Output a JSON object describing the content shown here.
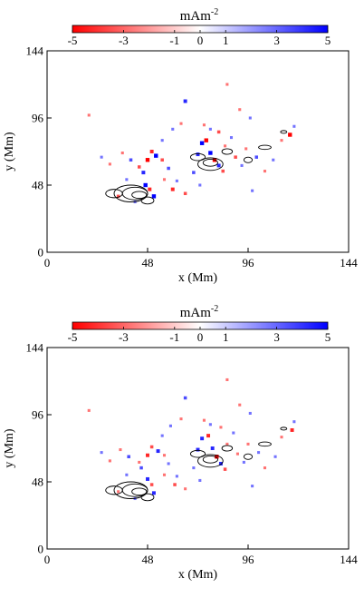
{
  "chart_data": [
    {
      "type": "heatmap",
      "colorbar": {
        "unit_base": "mAm",
        "unit_exp": "-2",
        "ticks": [
          "-5",
          "-3",
          "-1",
          "0",
          "1",
          "3",
          "5"
        ],
        "range": [
          -5,
          5
        ],
        "colors": {
          "negative": "#ff0000",
          "zero": "#ffffff",
          "positive": "#0000ff"
        }
      },
      "xlabel": "x (Mm)",
      "ylabel": "y (Mm)",
      "xticks": [
        "0",
        "48",
        "96",
        "144"
      ],
      "yticks": [
        "0",
        "48",
        "96",
        "144"
      ],
      "xlim": [
        0,
        144
      ],
      "ylim": [
        0,
        144
      ],
      "contour_color": "#000000",
      "contours": [
        {
          "cx": 40,
          "cy": 42,
          "rx": 8,
          "ry": 6
        },
        {
          "cx": 42,
          "cy": 42,
          "rx": 6,
          "ry": 4.5
        },
        {
          "cx": 44,
          "cy": 41,
          "rx": 3.5,
          "ry": 2.5
        },
        {
          "cx": 32,
          "cy": 42,
          "rx": 4,
          "ry": 3
        },
        {
          "cx": 48,
          "cy": 37,
          "rx": 3,
          "ry": 2.5
        },
        {
          "cx": 78,
          "cy": 63,
          "rx": 6,
          "ry": 4.5
        },
        {
          "cx": 78,
          "cy": 64,
          "rx": 3.5,
          "ry": 2.5
        },
        {
          "cx": 72,
          "cy": 68,
          "rx": 3.5,
          "ry": 2.5
        },
        {
          "cx": 86,
          "cy": 72,
          "rx": 2.5,
          "ry": 2
        },
        {
          "cx": 96,
          "cy": 66,
          "rx": 2,
          "ry": 2
        },
        {
          "cx": 104,
          "cy": 75,
          "rx": 3,
          "ry": 1.5
        },
        {
          "cx": 113,
          "cy": 86,
          "rx": 1.5,
          "ry": 1
        }
      ],
      "patches": [
        {
          "x": 47,
          "y": 48,
          "v": 5
        },
        {
          "x": 49,
          "y": 45,
          "v": -4
        },
        {
          "x": 51,
          "y": 40,
          "v": 5
        },
        {
          "x": 46,
          "y": 57,
          "v": 4
        },
        {
          "x": 48,
          "y": 66,
          "v": -5
        },
        {
          "x": 50,
          "y": 72,
          "v": -4
        },
        {
          "x": 52,
          "y": 69,
          "v": 5
        },
        {
          "x": 44,
          "y": 61,
          "v": -3
        },
        {
          "x": 40,
          "y": 66,
          "v": 3
        },
        {
          "x": 36,
          "y": 71,
          "v": -2
        },
        {
          "x": 55,
          "y": 66,
          "v": -3
        },
        {
          "x": 58,
          "y": 60,
          "v": 3
        },
        {
          "x": 62,
          "y": 51,
          "v": 2
        },
        {
          "x": 60,
          "y": 45,
          "v": -4
        },
        {
          "x": 66,
          "y": 42,
          "v": -3
        },
        {
          "x": 70,
          "y": 57,
          "v": 3
        },
        {
          "x": 72,
          "y": 70,
          "v": 4
        },
        {
          "x": 74,
          "y": 78,
          "v": 5
        },
        {
          "x": 76,
          "y": 80,
          "v": -5
        },
        {
          "x": 78,
          "y": 71,
          "v": 5
        },
        {
          "x": 80,
          "y": 66,
          "v": -5
        },
        {
          "x": 82,
          "y": 62,
          "v": 4
        },
        {
          "x": 84,
          "y": 58,
          "v": -3
        },
        {
          "x": 85,
          "y": 76,
          "v": -2
        },
        {
          "x": 88,
          "y": 82,
          "v": 2
        },
        {
          "x": 82,
          "y": 86,
          "v": -3
        },
        {
          "x": 78,
          "y": 88,
          "v": 2
        },
        {
          "x": 75,
          "y": 91,
          "v": -2
        },
        {
          "x": 90,
          "y": 68,
          "v": -3
        },
        {
          "x": 93,
          "y": 62,
          "v": 2
        },
        {
          "x": 95,
          "y": 74,
          "v": -2
        },
        {
          "x": 100,
          "y": 68,
          "v": 3
        },
        {
          "x": 104,
          "y": 58,
          "v": -2
        },
        {
          "x": 108,
          "y": 66,
          "v": 2
        },
        {
          "x": 112,
          "y": 80,
          "v": -2
        },
        {
          "x": 116,
          "y": 84,
          "v": -5
        },
        {
          "x": 118,
          "y": 90,
          "v": 2
        },
        {
          "x": 97,
          "y": 96,
          "v": 2
        },
        {
          "x": 92,
          "y": 102,
          "v": -2
        },
        {
          "x": 66,
          "y": 108,
          "v": 4
        },
        {
          "x": 64,
          "y": 92,
          "v": -2
        },
        {
          "x": 60,
          "y": 88,
          "v": 2
        },
        {
          "x": 55,
          "y": 80,
          "v": 2
        },
        {
          "x": 26,
          "y": 68,
          "v": 2
        },
        {
          "x": 30,
          "y": 63,
          "v": -2
        },
        {
          "x": 20,
          "y": 98,
          "v": -2
        },
        {
          "x": 34,
          "y": 40,
          "v": -3
        },
        {
          "x": 38,
          "y": 52,
          "v": 2
        },
        {
          "x": 42,
          "y": 36,
          "v": 2
        },
        {
          "x": 56,
          "y": 52,
          "v": -2
        },
        {
          "x": 86,
          "y": 120,
          "v": -2
        },
        {
          "x": 98,
          "y": 44,
          "v": 2
        },
        {
          "x": 73,
          "y": 48,
          "v": 2
        }
      ]
    },
    {
      "type": "heatmap",
      "colorbar": {
        "unit_base": "mAm",
        "unit_exp": "-2",
        "ticks": [
          "-5",
          "-3",
          "-1",
          "0",
          "1",
          "3",
          "5"
        ],
        "range": [
          -5,
          5
        ],
        "colors": {
          "negative": "#ff0000",
          "zero": "#ffffff",
          "positive": "#0000ff"
        }
      },
      "xlabel": "x (Mm)",
      "ylabel": "y (Mm)",
      "xticks": [
        "0",
        "48",
        "96",
        "144"
      ],
      "yticks": [
        "0",
        "48",
        "96",
        "144"
      ],
      "xlim": [
        0,
        144
      ],
      "ylim": [
        0,
        144
      ],
      "contour_color": "#000000",
      "contours": [
        {
          "cx": 40,
          "cy": 42,
          "rx": 8,
          "ry": 6
        },
        {
          "cx": 42,
          "cy": 42,
          "rx": 6,
          "ry": 4.5
        },
        {
          "cx": 44,
          "cy": 41,
          "rx": 3.5,
          "ry": 2.5
        },
        {
          "cx": 32,
          "cy": 42,
          "rx": 4,
          "ry": 3
        },
        {
          "cx": 48,
          "cy": 37,
          "rx": 3,
          "ry": 2.5
        },
        {
          "cx": 78,
          "cy": 63,
          "rx": 6,
          "ry": 4.5
        },
        {
          "cx": 78,
          "cy": 64,
          "rx": 3.5,
          "ry": 2.5
        },
        {
          "cx": 72,
          "cy": 68,
          "rx": 3.5,
          "ry": 2.5
        },
        {
          "cx": 86,
          "cy": 72,
          "rx": 2.5,
          "ry": 2
        },
        {
          "cx": 96,
          "cy": 66,
          "rx": 2,
          "ry": 2
        },
        {
          "cx": 104,
          "cy": 75,
          "rx": 3,
          "ry": 1.5
        },
        {
          "cx": 113,
          "cy": 86,
          "rx": 1.5,
          "ry": 1
        }
      ],
      "patches": [
        {
          "x": 48,
          "y": 50,
          "v": 4
        },
        {
          "x": 50,
          "y": 46,
          "v": -3
        },
        {
          "x": 51,
          "y": 40,
          "v": 4
        },
        {
          "x": 45,
          "y": 58,
          "v": 3
        },
        {
          "x": 48,
          "y": 67,
          "v": -4
        },
        {
          "x": 50,
          "y": 73,
          "v": -3
        },
        {
          "x": 53,
          "y": 70,
          "v": 4
        },
        {
          "x": 44,
          "y": 62,
          "v": -2
        },
        {
          "x": 39,
          "y": 66,
          "v": 3
        },
        {
          "x": 35,
          "y": 71,
          "v": -2
        },
        {
          "x": 56,
          "y": 67,
          "v": -2
        },
        {
          "x": 58,
          "y": 61,
          "v": 2
        },
        {
          "x": 62,
          "y": 52,
          "v": 2
        },
        {
          "x": 61,
          "y": 46,
          "v": -3
        },
        {
          "x": 66,
          "y": 43,
          "v": -2
        },
        {
          "x": 70,
          "y": 58,
          "v": 2
        },
        {
          "x": 72,
          "y": 71,
          "v": 4
        },
        {
          "x": 74,
          "y": 79,
          "v": 4
        },
        {
          "x": 77,
          "y": 81,
          "v": -4
        },
        {
          "x": 79,
          "y": 72,
          "v": 4
        },
        {
          "x": 81,
          "y": 66,
          "v": -5
        },
        {
          "x": 83,
          "y": 61,
          "v": 4
        },
        {
          "x": 85,
          "y": 57,
          "v": -3
        },
        {
          "x": 86,
          "y": 75,
          "v": -2
        },
        {
          "x": 89,
          "y": 83,
          "v": 2
        },
        {
          "x": 83,
          "y": 87,
          "v": -2
        },
        {
          "x": 78,
          "y": 89,
          "v": 2
        },
        {
          "x": 75,
          "y": 92,
          "v": -2
        },
        {
          "x": 91,
          "y": 68,
          "v": -2
        },
        {
          "x": 94,
          "y": 62,
          "v": 2
        },
        {
          "x": 96,
          "y": 75,
          "v": -2
        },
        {
          "x": 101,
          "y": 69,
          "v": 2
        },
        {
          "x": 104,
          "y": 58,
          "v": -2
        },
        {
          "x": 109,
          "y": 66,
          "v": 2
        },
        {
          "x": 112,
          "y": 80,
          "v": -2
        },
        {
          "x": 117,
          "y": 85,
          "v": -4
        },
        {
          "x": 118,
          "y": 91,
          "v": 2
        },
        {
          "x": 97,
          "y": 97,
          "v": 2
        },
        {
          "x": 92,
          "y": 103,
          "v": -2
        },
        {
          "x": 66,
          "y": 108,
          "v": 3
        },
        {
          "x": 64,
          "y": 93,
          "v": -2
        },
        {
          "x": 59,
          "y": 88,
          "v": 2
        },
        {
          "x": 55,
          "y": 81,
          "v": 2
        },
        {
          "x": 26,
          "y": 69,
          "v": 2
        },
        {
          "x": 30,
          "y": 63,
          "v": -2
        },
        {
          "x": 20,
          "y": 99,
          "v": -2
        },
        {
          "x": 34,
          "y": 41,
          "v": -2
        },
        {
          "x": 38,
          "y": 53,
          "v": 2
        },
        {
          "x": 42,
          "y": 36,
          "v": 2
        },
        {
          "x": 56,
          "y": 53,
          "v": -2
        },
        {
          "x": 86,
          "y": 121,
          "v": -2
        },
        {
          "x": 98,
          "y": 45,
          "v": 2
        },
        {
          "x": 73,
          "y": 49,
          "v": 2
        }
      ]
    }
  ]
}
